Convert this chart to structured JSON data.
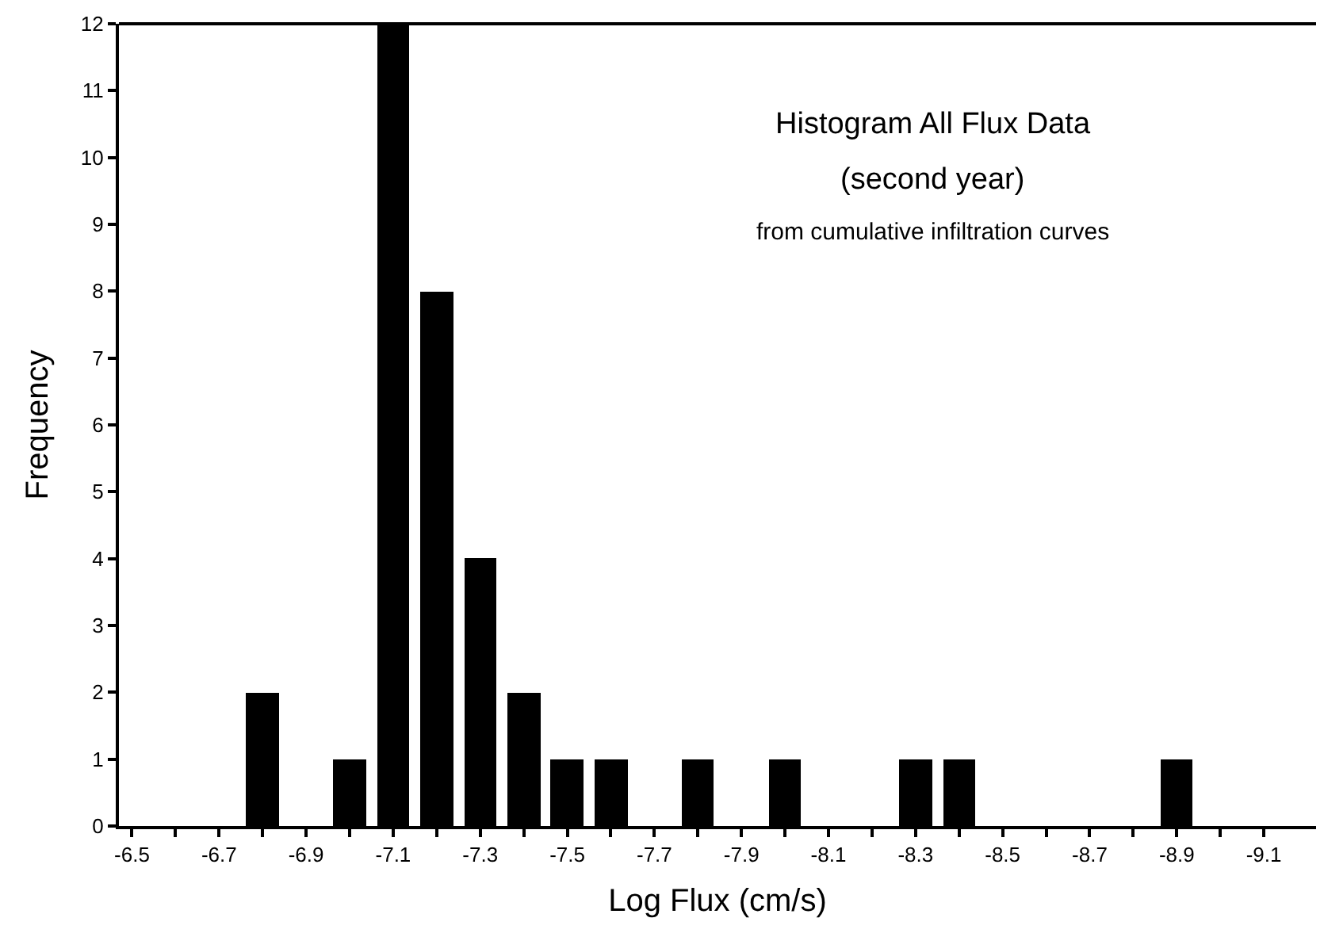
{
  "chart_data": {
    "type": "bar",
    "title": "Histogram All Flux Data",
    "subtitle": "(second year)",
    "annotations": [
      "from cumulative infiltration curves"
    ],
    "xlabel": "Log Flux (cm/s)",
    "ylabel": "Frequency",
    "x": [
      -6.8,
      -7.0,
      -7.1,
      -7.2,
      -7.3,
      -7.4,
      -7.5,
      -7.6,
      -7.8,
      -8.0,
      -8.3,
      -8.4,
      -8.9
    ],
    "values": [
      2,
      1,
      12,
      8,
      4,
      2,
      1,
      1,
      1,
      1,
      1,
      1,
      1
    ],
    "color": "#000000",
    "xlim": [
      -6.47,
      -9.22
    ],
    "xticks": [
      {
        "value": -6.5,
        "label": "-6.5"
      },
      {
        "value": -6.6,
        "label": null
      },
      {
        "value": -6.7,
        "label": "-6.7"
      },
      {
        "value": -6.8,
        "label": null
      },
      {
        "value": -6.9,
        "label": "-6.9"
      },
      {
        "value": -7.0,
        "label": null
      },
      {
        "value": -7.1,
        "label": "-7.1"
      },
      {
        "value": -7.2,
        "label": null
      },
      {
        "value": -7.3,
        "label": "-7.3"
      },
      {
        "value": -7.4,
        "label": null
      },
      {
        "value": -7.5,
        "label": "-7.5"
      },
      {
        "value": -7.6,
        "label": null
      },
      {
        "value": -7.7,
        "label": "-7.7"
      },
      {
        "value": -7.8,
        "label": null
      },
      {
        "value": -7.9,
        "label": "-7.9"
      },
      {
        "value": -8.0,
        "label": null
      },
      {
        "value": -8.1,
        "label": "-8.1"
      },
      {
        "value": -8.2,
        "label": null
      },
      {
        "value": -8.3,
        "label": "-8.3"
      },
      {
        "value": -8.4,
        "label": null
      },
      {
        "value": -8.5,
        "label": "-8.5"
      },
      {
        "value": -8.6,
        "label": null
      },
      {
        "value": -8.7,
        "label": "-8.7"
      },
      {
        "value": -8.8,
        "label": null
      },
      {
        "value": -8.9,
        "label": "-8.9"
      },
      {
        "value": -9.0,
        "label": null
      },
      {
        "value": -9.1,
        "label": "-9.1"
      }
    ],
    "ylim": [
      0,
      12
    ],
    "yticks": [
      0,
      1,
      2,
      3,
      4,
      5,
      6,
      7,
      8,
      9,
      10,
      11,
      12
    ],
    "line_style": "solid"
  }
}
